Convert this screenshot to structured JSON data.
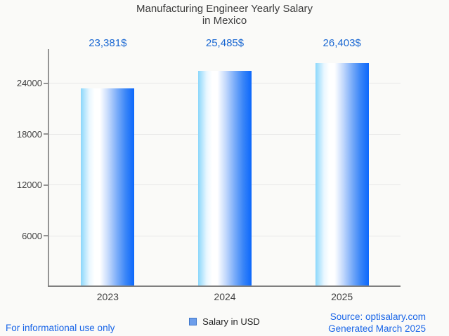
{
  "title": {
    "line1": "Manufacturing Engineer Yearly Salary",
    "line2": "in Mexico"
  },
  "chart_data": {
    "type": "bar",
    "title": "Manufacturing Engineer Yearly Salary in Mexico",
    "categories": [
      "2023",
      "2024",
      "2025"
    ],
    "values": [
      23381,
      25485,
      26403
    ],
    "value_labels": [
      "23,381$",
      "25,485$",
      "26,403$"
    ],
    "series_name": "Salary in USD",
    "xlabel": "",
    "ylabel": "",
    "yticks": [
      6000,
      12000,
      18000,
      24000
    ],
    "ylim": [
      0,
      28020
    ],
    "grid": true,
    "legend_position": "bottom",
    "bar_gradient": [
      [
        "0%",
        "#8bd7fb"
      ],
      [
        "16%",
        "#e9f7ff"
      ],
      [
        "26%",
        "#ffffff"
      ],
      [
        "36%",
        "#ffffff"
      ],
      [
        "52%",
        "#c2d8fc"
      ],
      [
        "68%",
        "#7badf9"
      ],
      [
        "84%",
        "#3b86f7"
      ],
      [
        "100%",
        "#0b67fc"
      ]
    ]
  },
  "legend": {
    "label": "Salary in USD",
    "marker_color": "#6d9eeb",
    "marker_border": "#3f76c8"
  },
  "footer": {
    "left": "For informational use only",
    "source": "Source: optisalary.com",
    "generated": "Generated March 2025"
  },
  "colors": {
    "background": "#fafaf8",
    "title_text": "#3d3d3d",
    "value_label": "#1967d2",
    "axis_text": "#424242",
    "axis_line": "#7f7f7f",
    "gridline": "#e7e7e7",
    "footer_link": "#1a66e8"
  }
}
